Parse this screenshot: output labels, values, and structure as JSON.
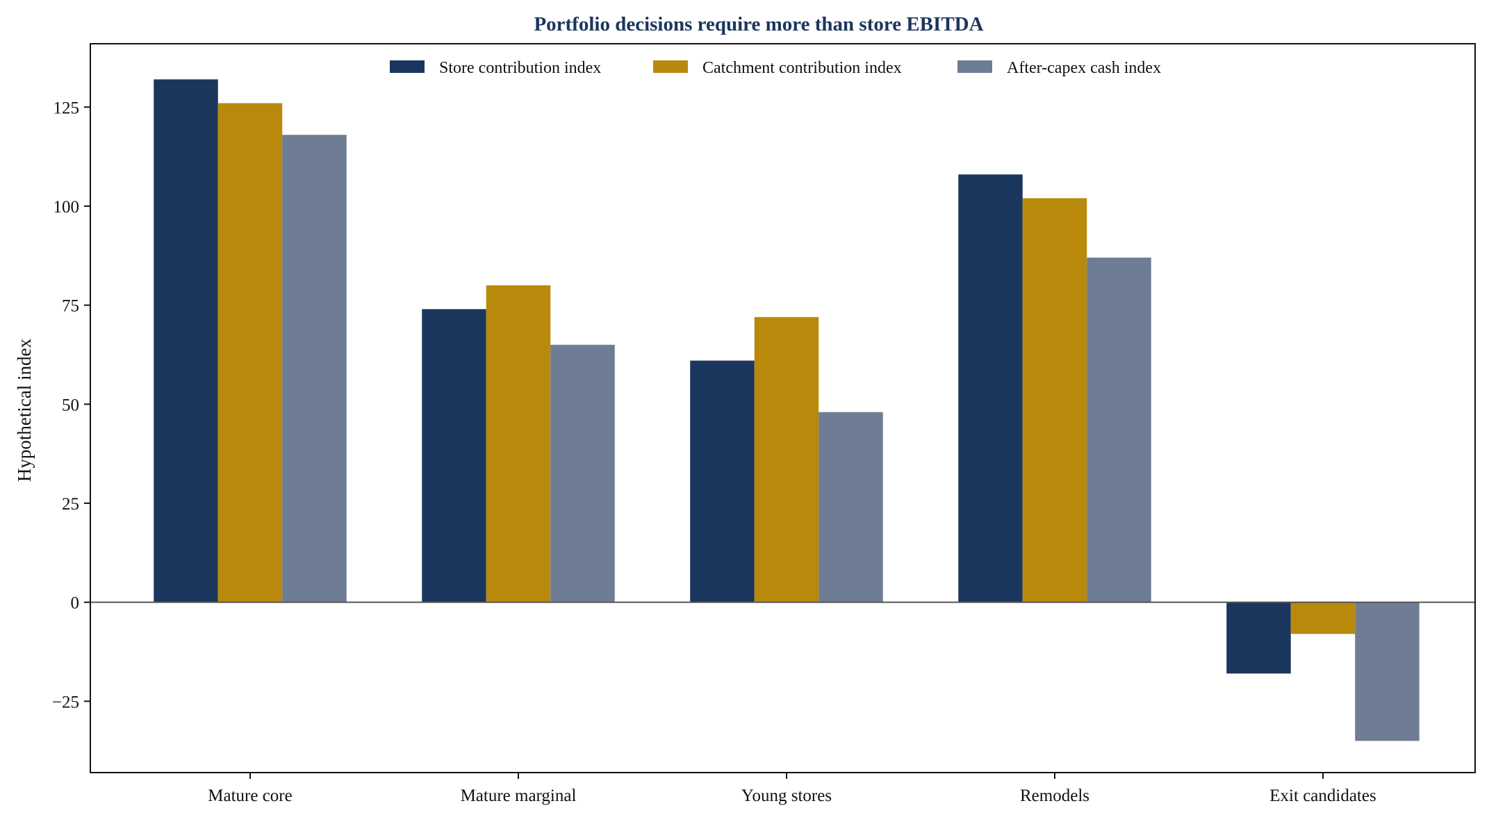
{
  "chart_data": {
    "type": "bar",
    "title": "Portfolio decisions require more than store EBITDA",
    "xlabel": "",
    "ylabel": "Hypothetical index",
    "categories": [
      "Mature core",
      "Mature marginal",
      "Young stores",
      "Remodels",
      "Exit candidates"
    ],
    "series": [
      {
        "name": "Store contribution index",
        "color": "#1b365d",
        "values": [
          132,
          74,
          61,
          108,
          -18
        ]
      },
      {
        "name": "Catchment contribution index",
        "color": "#b8890b",
        "values": [
          126,
          80,
          72,
          102,
          -8
        ]
      },
      {
        "name": "After-capex cash index",
        "color": "#6e7d93",
        "values": [
          118,
          65,
          48,
          87,
          -35
        ]
      }
    ],
    "ylim": [
      -43,
      141
    ],
    "yticks": [
      -25,
      0,
      25,
      50,
      75,
      100,
      125
    ],
    "ytick_labels": [
      "−25",
      "0",
      "25",
      "50",
      "75",
      "100",
      "125"
    ],
    "zero_line": true,
    "grid": false,
    "legend_position": "top-center"
  }
}
